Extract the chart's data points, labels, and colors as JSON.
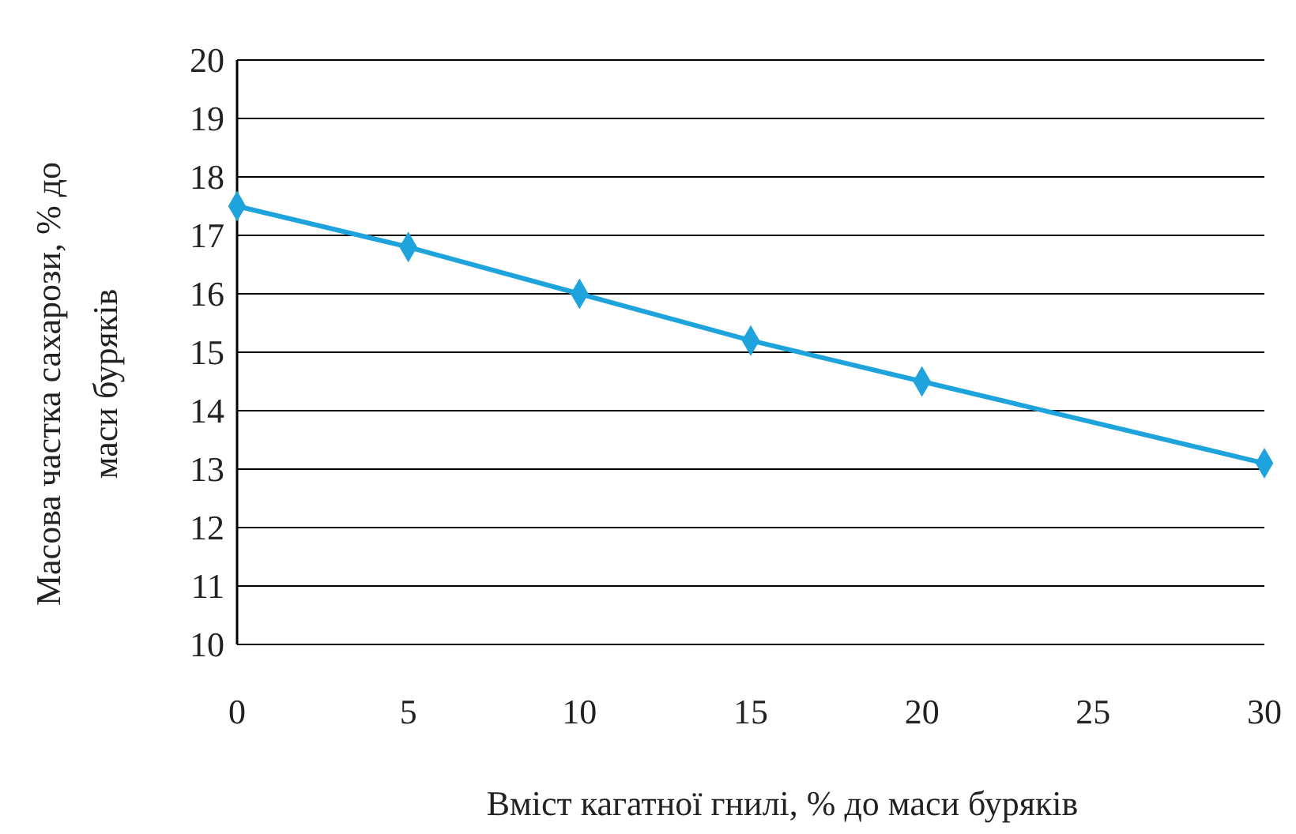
{
  "chart_data": {
    "type": "line",
    "xlabel": "Вміст кагатної гнилі, % до маси буряків",
    "ylabel": "Масова частка  сахарози, % до маси буряків",
    "x": [
      0,
      5,
      10,
      15,
      20,
      30
    ],
    "series": [
      {
        "color": "#1fa3dc",
        "values": [
          17.5,
          16.8,
          16.0,
          15.2,
          14.5,
          13.1
        ]
      }
    ],
    "xlim": [
      0,
      30
    ],
    "xticks": [
      0,
      5,
      10,
      15,
      20,
      25,
      30
    ],
    "ylim": [
      10,
      20
    ],
    "yticks": [
      10,
      11,
      12,
      13,
      14,
      15,
      16,
      17,
      18,
      19,
      20
    ],
    "grid": "y",
    "marker": "diamond",
    "line_style": "solid"
  }
}
